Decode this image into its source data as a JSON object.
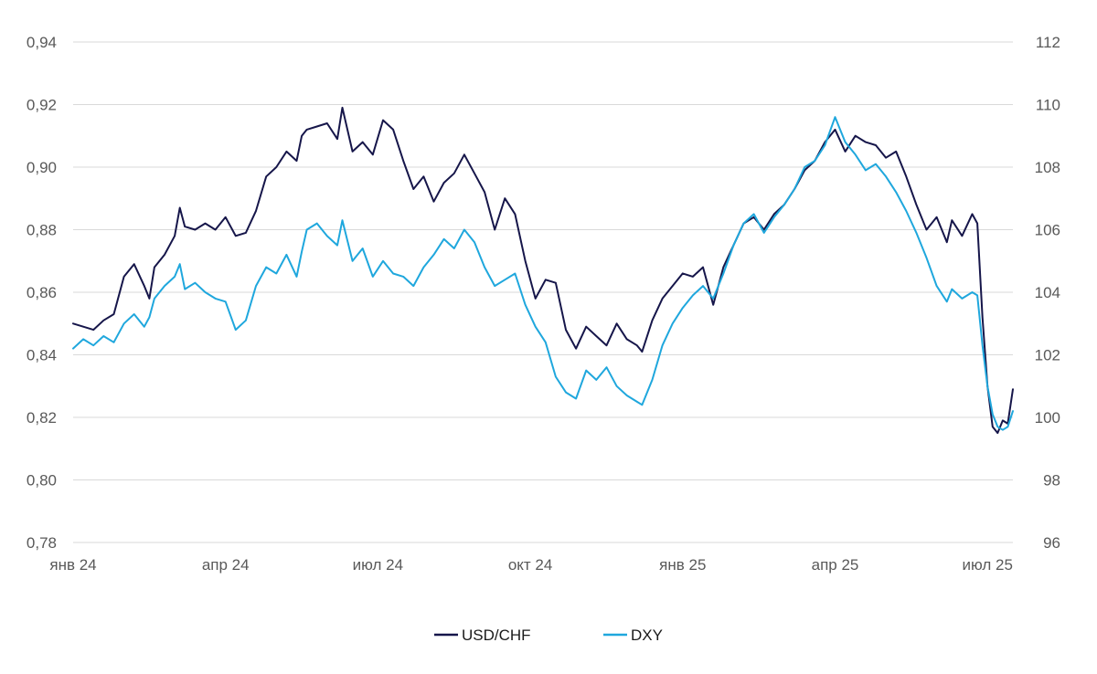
{
  "chart_data": {
    "type": "line",
    "title": "",
    "grid": true,
    "legend_position": "bottom",
    "x_tick_labels": [
      "янв 24",
      "апр 24",
      "июл 24",
      "окт 24",
      "янв 25",
      "апр 25",
      "июл 25"
    ],
    "y_left": {
      "ticks": [
        "0,78",
        "0,80",
        "0,82",
        "0,84",
        "0,86",
        "0,88",
        "0,90",
        "0,92",
        "0,94"
      ],
      "range": [
        0.78,
        0.94
      ]
    },
    "y_right": {
      "ticks": [
        "96",
        "98",
        "100",
        "102",
        "104",
        "106",
        "108",
        "110",
        "112"
      ],
      "range": [
        96,
        112
      ]
    },
    "x_range_months": [
      0,
      18.5
    ],
    "series": [
      {
        "name": "USD/CHF",
        "axis": "left",
        "color": "#16164a",
        "points": [
          [
            0.0,
            0.85
          ],
          [
            0.2,
            0.849
          ],
          [
            0.4,
            0.848
          ],
          [
            0.6,
            0.851
          ],
          [
            0.8,
            0.853
          ],
          [
            1.0,
            0.865
          ],
          [
            1.2,
            0.869
          ],
          [
            1.4,
            0.862
          ],
          [
            1.5,
            0.858
          ],
          [
            1.6,
            0.868
          ],
          [
            1.8,
            0.872
          ],
          [
            2.0,
            0.878
          ],
          [
            2.1,
            0.887
          ],
          [
            2.2,
            0.881
          ],
          [
            2.4,
            0.88
          ],
          [
            2.6,
            0.882
          ],
          [
            2.8,
            0.88
          ],
          [
            3.0,
            0.884
          ],
          [
            3.2,
            0.878
          ],
          [
            3.4,
            0.879
          ],
          [
            3.6,
            0.886
          ],
          [
            3.8,
            0.897
          ],
          [
            4.0,
            0.9
          ],
          [
            4.2,
            0.905
          ],
          [
            4.4,
            0.902
          ],
          [
            4.5,
            0.91
          ],
          [
            4.6,
            0.912
          ],
          [
            4.8,
            0.913
          ],
          [
            5.0,
            0.914
          ],
          [
            5.2,
            0.909
          ],
          [
            5.3,
            0.919
          ],
          [
            5.5,
            0.905
          ],
          [
            5.7,
            0.908
          ],
          [
            5.9,
            0.904
          ],
          [
            6.1,
            0.915
          ],
          [
            6.3,
            0.912
          ],
          [
            6.5,
            0.902
          ],
          [
            6.7,
            0.893
          ],
          [
            6.9,
            0.897
          ],
          [
            7.1,
            0.889
          ],
          [
            7.3,
            0.895
          ],
          [
            7.5,
            0.898
          ],
          [
            7.7,
            0.904
          ],
          [
            7.9,
            0.898
          ],
          [
            8.1,
            0.892
          ],
          [
            8.3,
            0.88
          ],
          [
            8.5,
            0.89
          ],
          [
            8.7,
            0.885
          ],
          [
            8.9,
            0.87
          ],
          [
            9.1,
            0.858
          ],
          [
            9.3,
            0.864
          ],
          [
            9.5,
            0.863
          ],
          [
            9.7,
            0.848
          ],
          [
            9.9,
            0.842
          ],
          [
            10.1,
            0.849
          ],
          [
            10.3,
            0.846
          ],
          [
            10.5,
            0.843
          ],
          [
            10.7,
            0.85
          ],
          [
            10.9,
            0.845
          ],
          [
            11.1,
            0.843
          ],
          [
            11.2,
            0.841
          ],
          [
            11.4,
            0.851
          ],
          [
            11.6,
            0.858
          ],
          [
            11.8,
            0.862
          ],
          [
            12.0,
            0.866
          ],
          [
            12.2,
            0.865
          ],
          [
            12.4,
            0.868
          ],
          [
            12.6,
            0.856
          ],
          [
            12.8,
            0.868
          ],
          [
            13.0,
            0.875
          ],
          [
            13.2,
            0.882
          ],
          [
            13.4,
            0.884
          ],
          [
            13.6,
            0.88
          ],
          [
            13.8,
            0.885
          ],
          [
            14.0,
            0.888
          ],
          [
            14.2,
            0.893
          ],
          [
            14.4,
            0.899
          ],
          [
            14.6,
            0.902
          ],
          [
            14.8,
            0.908
          ],
          [
            15.0,
            0.912
          ],
          [
            15.2,
            0.905
          ],
          [
            15.4,
            0.91
          ],
          [
            15.6,
            0.908
          ],
          [
            15.8,
            0.907
          ],
          [
            16.0,
            0.903
          ],
          [
            16.2,
            0.905
          ],
          [
            16.4,
            0.897
          ],
          [
            16.6,
            0.888
          ],
          [
            16.8,
            0.88
          ],
          [
            17.0,
            0.884
          ],
          [
            17.2,
            0.876
          ],
          [
            17.3,
            0.883
          ],
          [
            17.5,
            0.878
          ],
          [
            17.7,
            0.885
          ],
          [
            17.8,
            0.882
          ],
          [
            17.9,
            0.852
          ],
          [
            18.0,
            0.83
          ],
          [
            18.1,
            0.817
          ],
          [
            18.2,
            0.815
          ],
          [
            18.3,
            0.819
          ],
          [
            18.4,
            0.818
          ],
          [
            18.5,
            0.829
          ]
        ]
      },
      {
        "name": "DXY",
        "axis": "right",
        "color": "#1fa7dd",
        "points": [
          [
            0.0,
            102.2
          ],
          [
            0.2,
            102.5
          ],
          [
            0.4,
            102.3
          ],
          [
            0.6,
            102.6
          ],
          [
            0.8,
            102.4
          ],
          [
            1.0,
            103.0
          ],
          [
            1.2,
            103.3
          ],
          [
            1.4,
            102.9
          ],
          [
            1.5,
            103.2
          ],
          [
            1.6,
            103.8
          ],
          [
            1.8,
            104.2
          ],
          [
            2.0,
            104.5
          ],
          [
            2.1,
            104.9
          ],
          [
            2.2,
            104.1
          ],
          [
            2.4,
            104.3
          ],
          [
            2.6,
            104.0
          ],
          [
            2.8,
            103.8
          ],
          [
            3.0,
            103.7
          ],
          [
            3.2,
            102.8
          ],
          [
            3.4,
            103.1
          ],
          [
            3.6,
            104.2
          ],
          [
            3.8,
            104.8
          ],
          [
            4.0,
            104.6
          ],
          [
            4.2,
            105.2
          ],
          [
            4.4,
            104.5
          ],
          [
            4.5,
            105.3
          ],
          [
            4.6,
            106.0
          ],
          [
            4.8,
            106.2
          ],
          [
            5.0,
            105.8
          ],
          [
            5.2,
            105.5
          ],
          [
            5.3,
            106.3
          ],
          [
            5.5,
            105.0
          ],
          [
            5.7,
            105.4
          ],
          [
            5.9,
            104.5
          ],
          [
            6.1,
            105.0
          ],
          [
            6.3,
            104.6
          ],
          [
            6.5,
            104.5
          ],
          [
            6.7,
            104.2
          ],
          [
            6.9,
            104.8
          ],
          [
            7.1,
            105.2
          ],
          [
            7.3,
            105.7
          ],
          [
            7.5,
            105.4
          ],
          [
            7.7,
            106.0
          ],
          [
            7.9,
            105.6
          ],
          [
            8.1,
            104.8
          ],
          [
            8.3,
            104.2
          ],
          [
            8.5,
            104.4
          ],
          [
            8.7,
            104.6
          ],
          [
            8.9,
            103.6
          ],
          [
            9.1,
            102.9
          ],
          [
            9.3,
            102.4
          ],
          [
            9.5,
            101.3
          ],
          [
            9.7,
            100.8
          ],
          [
            9.9,
            100.6
          ],
          [
            10.1,
            101.5
          ],
          [
            10.3,
            101.2
          ],
          [
            10.5,
            101.6
          ],
          [
            10.7,
            101.0
          ],
          [
            10.9,
            100.7
          ],
          [
            11.1,
            100.5
          ],
          [
            11.2,
            100.4
          ],
          [
            11.4,
            101.2
          ],
          [
            11.6,
            102.3
          ],
          [
            11.8,
            103.0
          ],
          [
            12.0,
            103.5
          ],
          [
            12.2,
            103.9
          ],
          [
            12.4,
            104.2
          ],
          [
            12.6,
            103.8
          ],
          [
            12.8,
            104.6
          ],
          [
            13.0,
            105.5
          ],
          [
            13.2,
            106.2
          ],
          [
            13.4,
            106.5
          ],
          [
            13.6,
            105.9
          ],
          [
            13.8,
            106.4
          ],
          [
            14.0,
            106.8
          ],
          [
            14.2,
            107.3
          ],
          [
            14.4,
            108.0
          ],
          [
            14.6,
            108.2
          ],
          [
            14.8,
            108.7
          ],
          [
            15.0,
            109.6
          ],
          [
            15.2,
            108.8
          ],
          [
            15.4,
            108.4
          ],
          [
            15.6,
            107.9
          ],
          [
            15.8,
            108.1
          ],
          [
            16.0,
            107.7
          ],
          [
            16.2,
            107.2
          ],
          [
            16.4,
            106.6
          ],
          [
            16.6,
            105.9
          ],
          [
            16.8,
            105.1
          ],
          [
            17.0,
            104.2
          ],
          [
            17.2,
            103.7
          ],
          [
            17.3,
            104.1
          ],
          [
            17.5,
            103.8
          ],
          [
            17.7,
            104.0
          ],
          [
            17.8,
            103.9
          ],
          [
            17.9,
            102.3
          ],
          [
            18.0,
            101.0
          ],
          [
            18.1,
            100.1
          ],
          [
            18.2,
            99.7
          ],
          [
            18.3,
            99.6
          ],
          [
            18.4,
            99.7
          ],
          [
            18.5,
            100.2
          ]
        ]
      }
    ]
  }
}
